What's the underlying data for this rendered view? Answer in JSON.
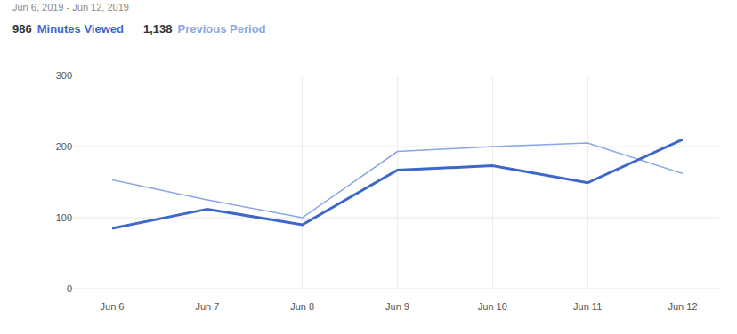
{
  "chart_data": {
    "type": "line",
    "subtitle": "Jun 6, 2019 - Jun 12, 2019",
    "categories": [
      "Jun 6",
      "Jun 7",
      "Jun 8",
      "Jun 9",
      "Jun 10",
      "Jun 11",
      "Jun 12"
    ],
    "series": [
      {
        "name": "Minutes Viewed",
        "color": "#3d67c9",
        "total": 986,
        "values": [
          85,
          112,
          90,
          167,
          173,
          149,
          210
        ]
      },
      {
        "name": "Previous Period",
        "color": "#8aa5e3",
        "total": 1138,
        "values": [
          153,
          125,
          100,
          193,
          200,
          205,
          162
        ]
      }
    ],
    "ylim": [
      0,
      300
    ],
    "yticks": [
      0,
      100,
      200,
      300
    ],
    "grid": true
  }
}
